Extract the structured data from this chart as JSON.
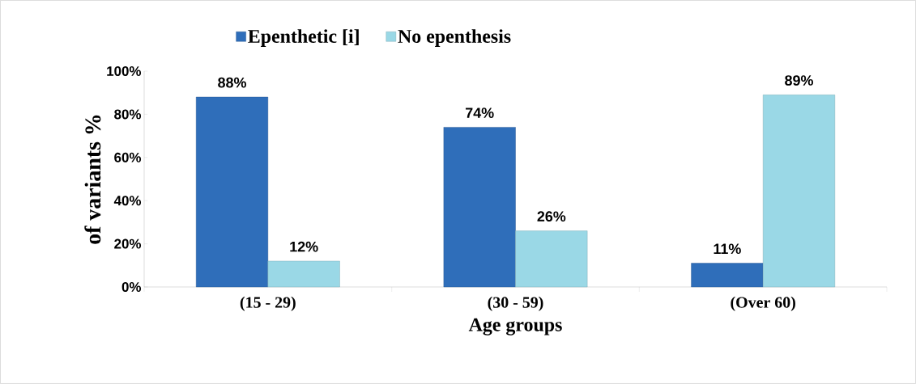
{
  "chart_data": {
    "type": "bar",
    "xlabel": "Age groups",
    "ylabel": "of variants %",
    "categories": [
      "(15 - 29)",
      "(30 - 59)",
      "(Over 60)"
    ],
    "series": [
      {
        "name": "Epenthetic [i]",
        "color": "#2f6eba",
        "values": [
          88,
          74,
          11
        ],
        "value_labels": [
          "88%",
          "74%",
          "11%"
        ]
      },
      {
        "name": "No epenthesis",
        "color": "#9ad8e6",
        "values": [
          12,
          26,
          89
        ],
        "value_labels": [
          "12%",
          "26%",
          "89%"
        ]
      }
    ],
    "ylim": [
      0,
      100
    ],
    "yticks": [
      {
        "value": 0,
        "label": "0%"
      },
      {
        "value": 20,
        "label": "20%"
      },
      {
        "value": 40,
        "label": "40%"
      },
      {
        "value": 60,
        "label": "60%"
      },
      {
        "value": 80,
        "label": "80%"
      },
      {
        "value": 100,
        "label": "100%"
      }
    ],
    "legend": "top"
  }
}
